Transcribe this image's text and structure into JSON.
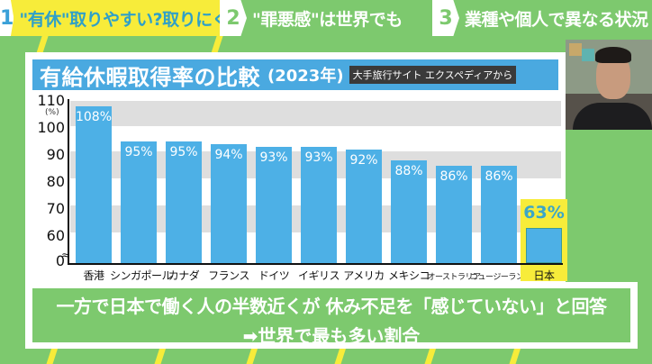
{
  "topbar": {
    "segments": [
      {
        "num": "1",
        "text": "\"有休\"取りやすい?取りにくい?",
        "active": true
      },
      {
        "num": "2",
        "text": "\"罪悪感\"は世界でも",
        "active": false
      },
      {
        "num": "3",
        "text": "業種や個人で異なる状況",
        "active": false
      }
    ]
  },
  "panel": {
    "title": "有給休暇取得率の比較",
    "year": "(2023年)",
    "source": "大手旅行サイト エクスペディアから"
  },
  "chart_data": {
    "type": "bar",
    "title": "有給休暇取得率の比較 (2023年)",
    "subtitle": "大手旅行サイト エクスペディアから",
    "xlabel": "",
    "ylabel": "(%)",
    "ylim": [
      0,
      110
    ],
    "y_axis_break": "between 0 and 60",
    "yticks": [
      "110",
      "100",
      "90",
      "80",
      "70",
      "60",
      "0"
    ],
    "grid": "alternating horizontal bands",
    "categories": [
      "香港",
      "シンガポール",
      "カナダ",
      "フランス",
      "ドイツ",
      "イギリス",
      "アメリカ",
      "メキシコ",
      "オーストラリア",
      "ニュージーランド",
      "日本"
    ],
    "values": [
      108,
      95,
      95,
      94,
      93,
      93,
      92,
      88,
      86,
      86,
      63
    ],
    "value_labels": [
      "108%",
      "95%",
      "95%",
      "94%",
      "93%",
      "93%",
      "92%",
      "88%",
      "86%",
      "86%",
      "63%"
    ],
    "highlight": {
      "category": "日本",
      "color": "#f7ec3a"
    },
    "bar_color": "#4db0e6"
  },
  "bottom": {
    "line1": "一方で日本で働く人の半数近くが 休み不足を「感じていない」と回答",
    "line2": "➡世界で最も多い割合"
  },
  "colors": {
    "background_green": "#7dc96e",
    "accent_yellow": "#f7ec3a",
    "title_blue": "#4aa9e0",
    "bar_blue": "#4db0e6"
  }
}
